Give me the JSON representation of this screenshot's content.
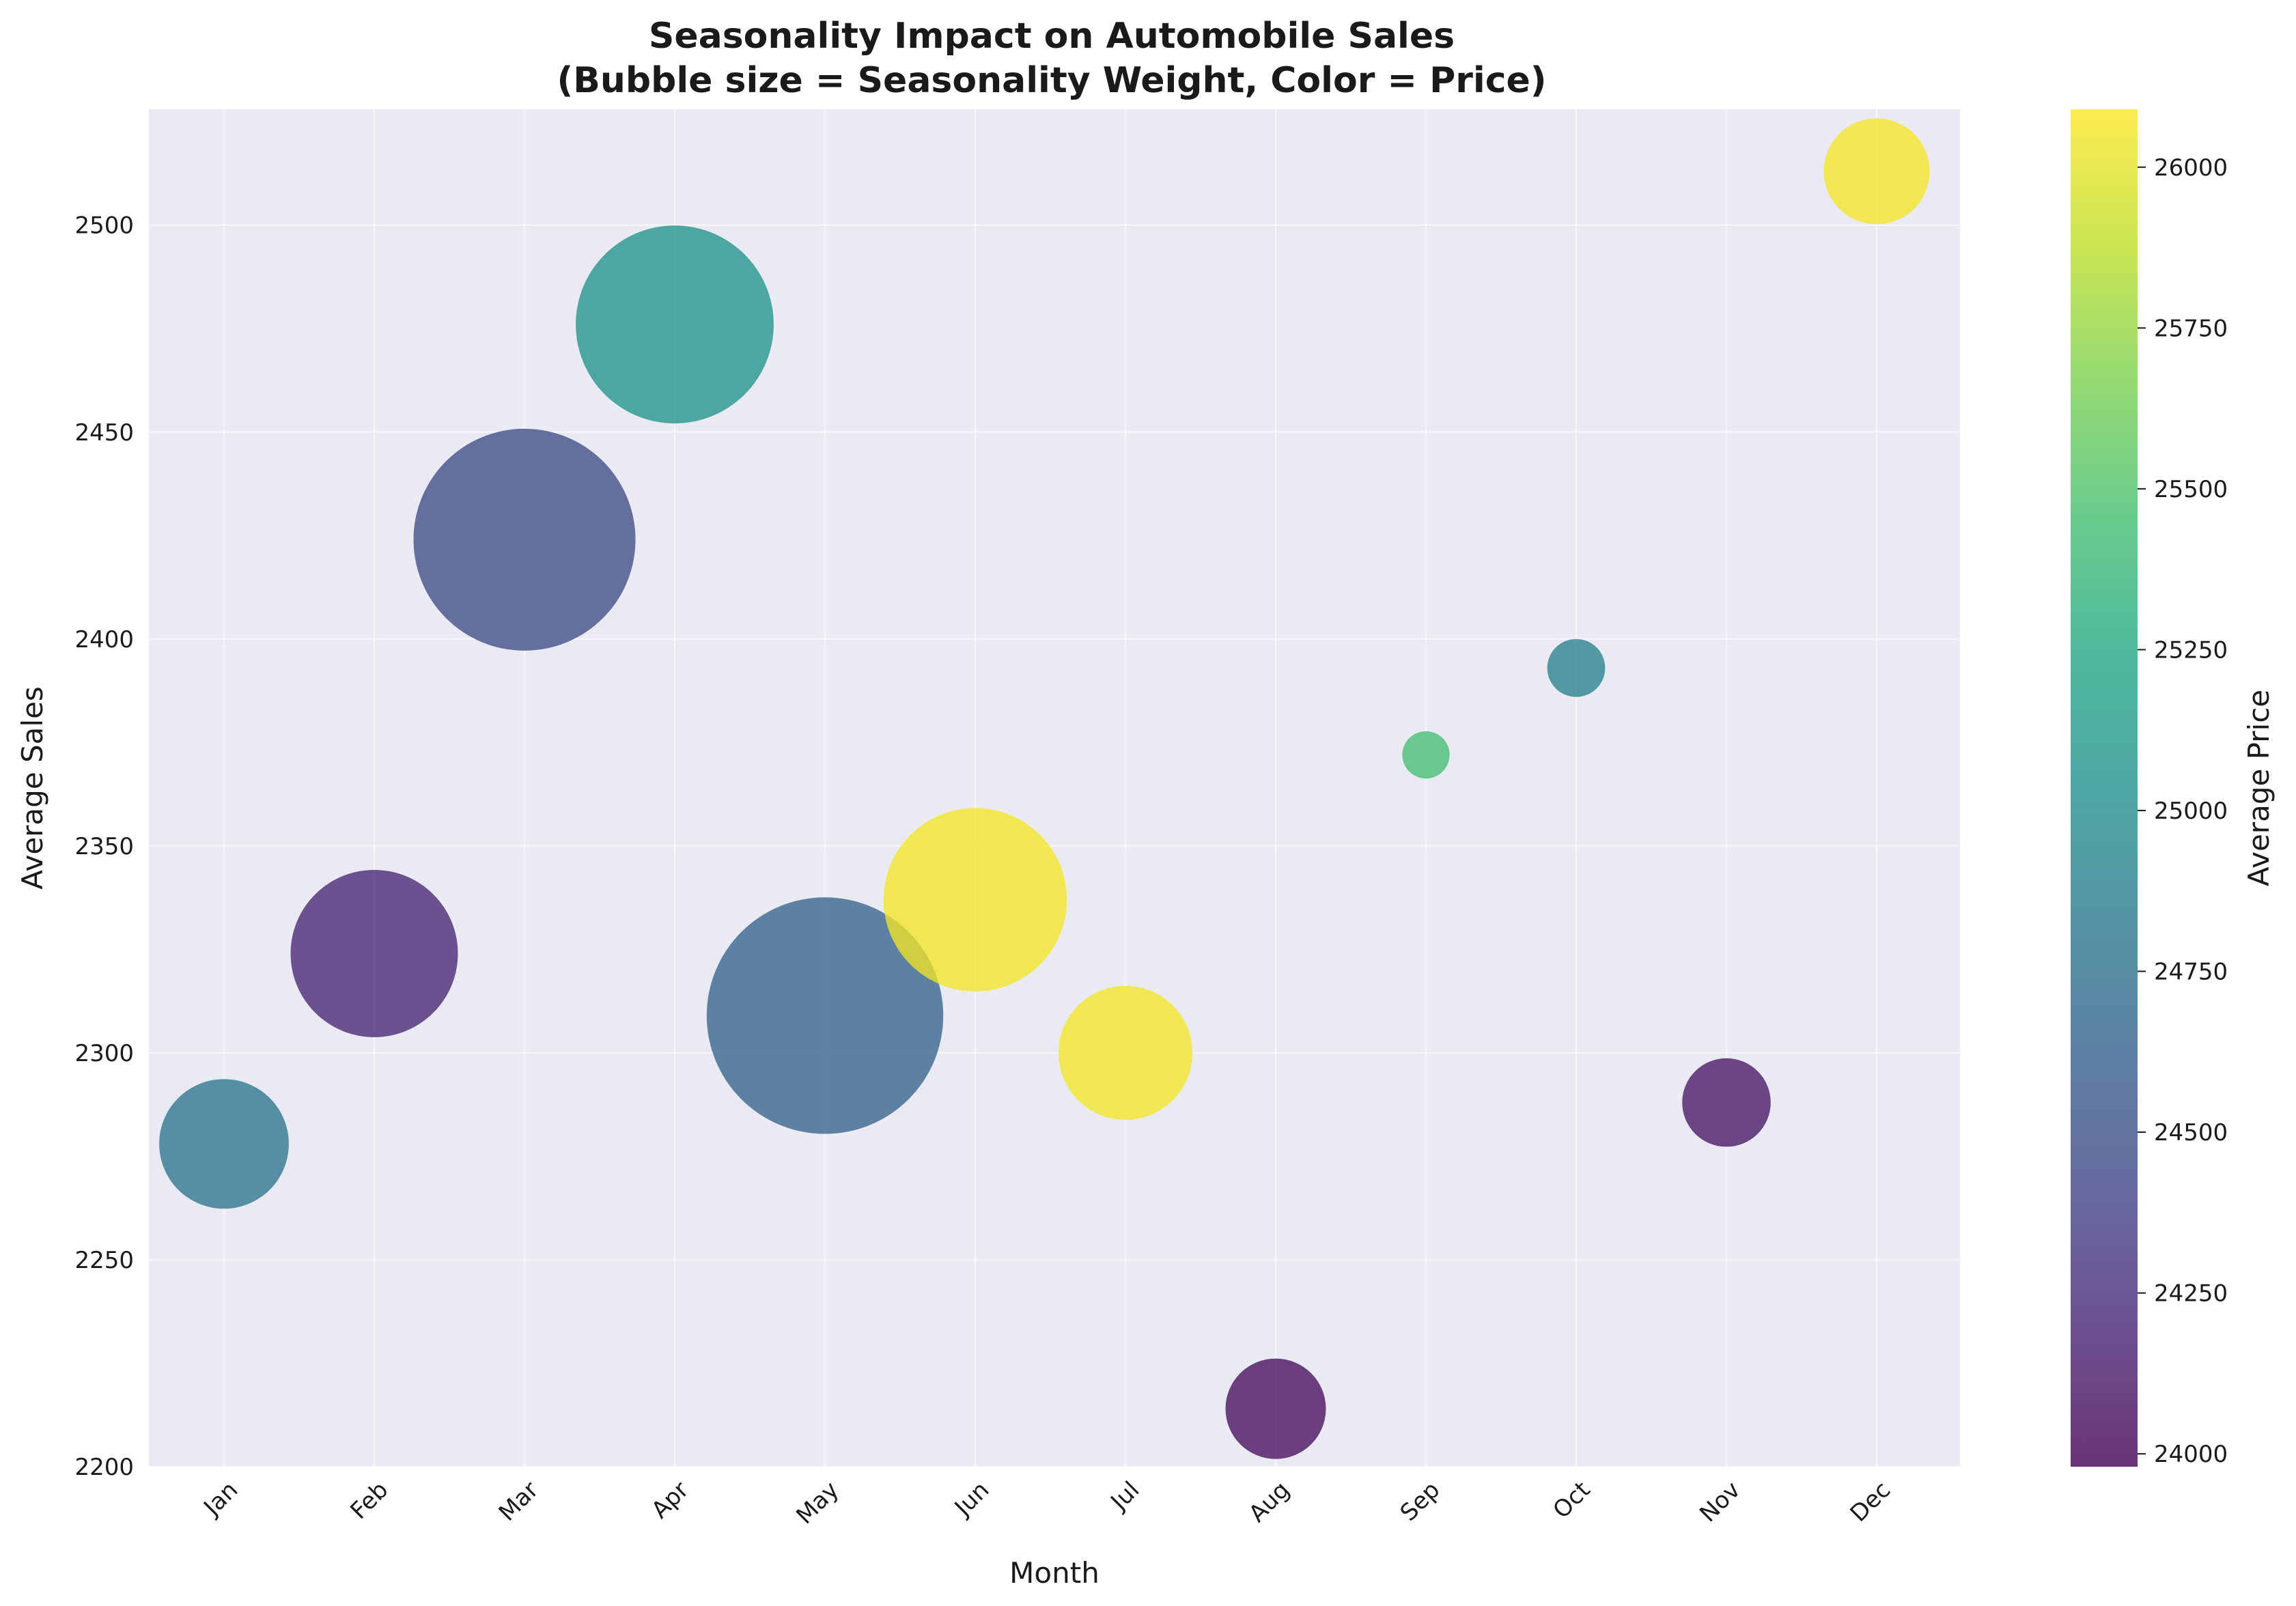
{
  "chart_data": {
    "type": "scatter",
    "title_line1": "Seasonality Impact on Automobile Sales",
    "title_line2": "(Bubble size = Seasonality Weight, Color = Price)",
    "xlabel": "Month",
    "ylabel": "Average Sales",
    "colorbar_label": "Average Price",
    "categories": [
      "Jan",
      "Feb",
      "Mar",
      "Apr",
      "May",
      "Jun",
      "Jul",
      "Aug",
      "Sep",
      "Oct",
      "Nov",
      "Dec"
    ],
    "x": [
      "Jan",
      "Feb",
      "Mar",
      "Apr",
      "May",
      "Jun",
      "Jul",
      "Aug",
      "Sep",
      "Oct",
      "Nov",
      "Dec"
    ],
    "y": [
      2278,
      2324,
      2424,
      2476,
      2309,
      2337,
      2300,
      2214,
      2372,
      2393,
      2288,
      2513
    ],
    "bubble_size": [
      0.75,
      1.25,
      2.2,
      1.75,
      2.5,
      1.5,
      0.8,
      0.45,
      0.1,
      0.15,
      0.35,
      0.5
    ],
    "price": [
      24800,
      24200,
      24450,
      25050,
      24650,
      26050,
      26050,
      24050,
      25450,
      24900,
      24100,
      26050
    ],
    "ylim": [
      2200,
      2528
    ],
    "yticks": [
      2200,
      2250,
      2300,
      2350,
      2400,
      2450,
      2500
    ],
    "colorbar_range": [
      23980,
      26090
    ],
    "colorbar_ticks": [
      24000,
      24250,
      24500,
      24750,
      25000,
      25250,
      25500,
      25750,
      26000
    ],
    "colormap": "viridis",
    "grid": true,
    "colors": {
      "plot_background": "#eaeaf2",
      "grid": "#ffffff",
      "text": "#1a1a1a"
    }
  }
}
